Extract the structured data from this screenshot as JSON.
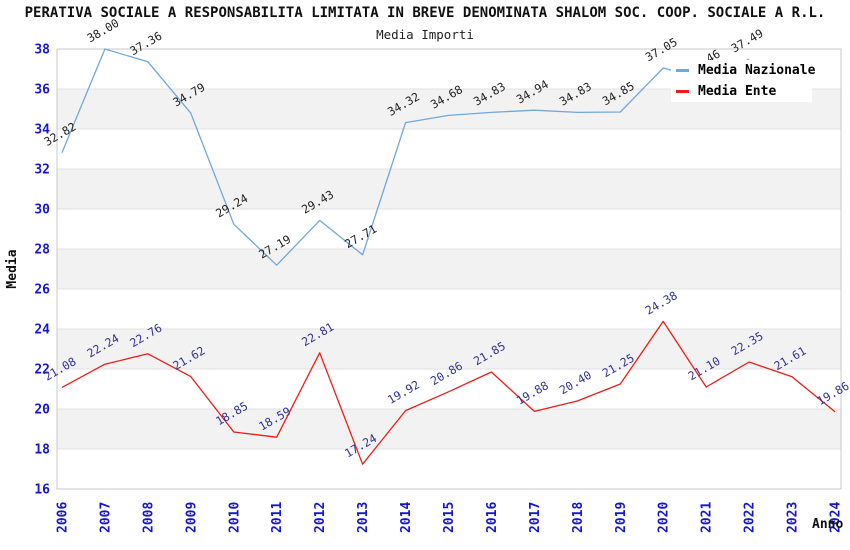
{
  "header": {
    "title": "PERATIVA SOCIALE A RESPONSABILITA LIMITATA IN BREVE DENOMINATA SHALOM SOC. COOP. SOCIALE A R.L.",
    "subtitle": "Media Importi"
  },
  "legend": {
    "items": [
      {
        "label": "Media Nazionale",
        "color": "#6fa8dc"
      },
      {
        "label": "Media Ente",
        "color": "#ec1d17"
      }
    ]
  },
  "axes": {
    "x_title": "Anno",
    "y_title": "Media"
  },
  "colors": {
    "national_line": "#6fa8dc",
    "entity_line": "#ec1d17",
    "tick_text": "#1616cf",
    "national_label_text": "#222222",
    "entity_label_text": "#323296",
    "band_fill": "#f2f2f2",
    "grid_line": "#e2e2e2",
    "frame_line": "#c8c8c8"
  },
  "chart_data": {
    "type": "line",
    "title": "Media Importi",
    "xlabel": "Anno",
    "ylabel": "Media",
    "ylim": [
      16,
      38
    ],
    "ytick_step": 2,
    "grid": "horizontal-bands-alternating",
    "legend_position": "top-right-inside",
    "categories": [
      "2006",
      "2007",
      "2008",
      "2009",
      "2010",
      "2011",
      "2012",
      "2013",
      "2014",
      "2015",
      "2016",
      "2017",
      "2018",
      "2019",
      "2020",
      "2021",
      "2022",
      "2023",
      "2024"
    ],
    "series": [
      {
        "name": "Media Nazionale",
        "color": "#6fa8dc",
        "label_color": "#222222",
        "values": [
          32.82,
          38.0,
          37.36,
          34.79,
          29.24,
          27.19,
          29.43,
          27.71,
          34.32,
          34.68,
          34.83,
          34.94,
          34.83,
          34.85,
          37.05,
          36.46,
          37.49,
          null,
          null
        ],
        "note": "2021 value partially hidden behind legend in source; estimated"
      },
      {
        "name": "Media Ente",
        "color": "#ec1d17",
        "label_color": "#323296",
        "values": [
          21.08,
          22.24,
          22.76,
          21.62,
          18.85,
          18.59,
          22.81,
          17.24,
          19.92,
          20.86,
          21.85,
          19.88,
          20.4,
          21.25,
          24.38,
          21.1,
          22.35,
          21.61,
          19.86
        ]
      }
    ]
  }
}
